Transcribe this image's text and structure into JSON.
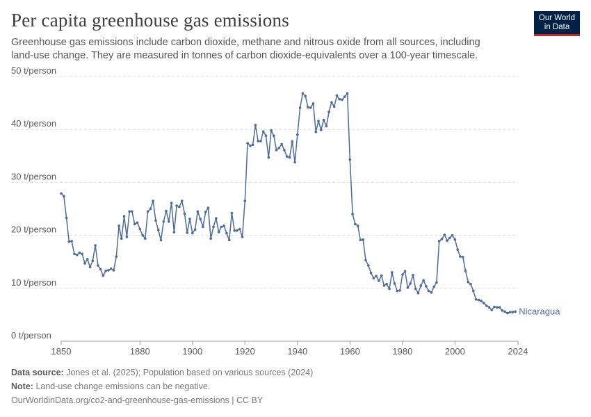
{
  "header": {
    "title": "Per capita greenhouse gas emissions",
    "subtitle": "Greenhouse gas emissions include carbon dioxide, methane and nitrous oxide from all sources, including land-use change. They are measured in tonnes of carbon dioxide-equivalents over a 100-year timescale.",
    "logo_line1": "Our World",
    "logo_line2": "in Data"
  },
  "footer": {
    "source_label": "Data source:",
    "source_text": "Jones et al. (2025); Population based on various sources (2024)",
    "note_label": "Note:",
    "note_text": "Land-use change emissions can be negative.",
    "url": "OurWorldinData.org/co2-and-greenhouse-gas-emissions | CC BY"
  },
  "colors": {
    "series": "#4c6a9c",
    "grid": "#dddddd",
    "text": "#5b5b5b"
  },
  "chart_data": {
    "type": "line",
    "ylim": [
      0,
      50
    ],
    "xlim": [
      1850,
      2023
    ],
    "y_ticks": [
      0,
      10,
      20,
      30,
      40,
      50
    ],
    "y_tick_labels": [
      "0 t/person",
      "10 t/person",
      "20 t/person",
      "30 t/person",
      "40 t/person",
      "50 t/person"
    ],
    "x_ticks": [
      1850,
      1880,
      1900,
      1920,
      1940,
      1960,
      1980,
      2000,
      2024
    ],
    "grid": "horizontal-dashed",
    "series": [
      {
        "name": "Nicaragua",
        "x": [
          1850,
          1851,
          1852,
          1853,
          1854,
          1855,
          1856,
          1857,
          1858,
          1859,
          1860,
          1861,
          1862,
          1863,
          1864,
          1865,
          1866,
          1867,
          1868,
          1869,
          1870,
          1871,
          1872,
          1873,
          1874,
          1875,
          1876,
          1877,
          1878,
          1879,
          1880,
          1881,
          1882,
          1883,
          1884,
          1885,
          1886,
          1887,
          1888,
          1889,
          1890,
          1891,
          1892,
          1893,
          1894,
          1895,
          1896,
          1897,
          1898,
          1899,
          1900,
          1901,
          1902,
          1903,
          1904,
          1905,
          1906,
          1907,
          1908,
          1909,
          1910,
          1911,
          1912,
          1913,
          1914,
          1915,
          1916,
          1917,
          1918,
          1919,
          1920,
          1921,
          1922,
          1923,
          1924,
          1925,
          1926,
          1927,
          1928,
          1929,
          1930,
          1931,
          1932,
          1933,
          1934,
          1935,
          1936,
          1937,
          1938,
          1939,
          1940,
          1941,
          1942,
          1943,
          1944,
          1945,
          1946,
          1947,
          1948,
          1949,
          1950,
          1951,
          1952,
          1953,
          1954,
          1955,
          1956,
          1957,
          1958,
          1959,
          1960,
          1961,
          1962,
          1963,
          1964,
          1965,
          1966,
          1967,
          1968,
          1969,
          1970,
          1971,
          1972,
          1973,
          1974,
          1975,
          1976,
          1977,
          1978,
          1979,
          1980,
          1981,
          1982,
          1983,
          1984,
          1985,
          1986,
          1987,
          1988,
          1989,
          1990,
          1991,
          1992,
          1993,
          1994,
          1995,
          1996,
          1997,
          1998,
          1999,
          2000,
          2001,
          2002,
          2003,
          2004,
          2005,
          2006,
          2007,
          2008,
          2009,
          2010,
          2011,
          2012,
          2013,
          2014,
          2015,
          2016,
          2017,
          2018,
          2019,
          2020,
          2021,
          2022,
          2023
        ],
        "values": [
          27.9,
          27.4,
          23.3,
          18.8,
          18.9,
          16.5,
          16.3,
          16.7,
          16.5,
          14.7,
          15.5,
          14.0,
          15.2,
          18.1,
          14.3,
          13.6,
          12.4,
          13.3,
          13.4,
          13.7,
          13.4,
          16.0,
          21.8,
          19.4,
          23.6,
          19.7,
          24.5,
          24.5,
          22.1,
          22.4,
          21.2,
          20.0,
          19.4,
          24.5,
          25.0,
          26.5,
          22.8,
          21.0,
          19.1,
          22.6,
          24.6,
          22.6,
          26.1,
          20.6,
          25.6,
          25.4,
          26.5,
          24.1,
          20.5,
          23.1,
          20.4,
          21.1,
          24.5,
          23.1,
          21.6,
          24.4,
          25.2,
          19.4,
          21.6,
          23.2,
          20.6,
          21.6,
          21.8,
          20.4,
          19.1,
          24.2,
          20.9,
          20.9,
          21.2,
          19.7,
          26.5,
          37.4,
          36.9,
          37.1,
          40.8,
          37.8,
          37.8,
          39.6,
          38.8,
          34.7,
          39.8,
          38.8,
          36.1,
          36.5,
          37.2,
          36.1,
          34.9,
          34.7,
          37.7,
          33.8,
          39.0,
          44.1,
          46.8,
          46.3,
          44.2,
          44.1,
          44.9,
          39.5,
          41.6,
          39.9,
          41.8,
          40.6,
          43.3,
          45.1,
          44.3,
          46.4,
          45.7,
          45.6,
          46.2,
          46.8,
          34.3,
          24.0,
          22.1,
          21.8,
          19.1,
          19.2,
          15.3,
          14.3,
          12.9,
          11.9,
          12.3,
          11.4,
          12.4,
          10.5,
          10.8,
          9.9,
          13.0,
          10.9,
          9.5,
          9.6,
          12.6,
          13.2,
          10.1,
          10.9,
          12.5,
          9.9,
          9.1,
          10.5,
          11.5,
          10.4,
          9.5,
          9.2,
          10.3,
          11.1,
          18.9,
          19.3,
          20.1,
          19.0,
          19.5,
          20.0,
          19.2,
          17.3,
          16.0,
          15.9,
          13.3,
          11.2,
          10.8,
          9.5,
          7.9,
          7.8,
          7.6,
          7.2,
          6.7,
          6.4,
          5.9,
          6.5,
          6.4,
          6.4,
          5.8,
          5.6,
          5.3,
          5.5,
          5.5,
          5.6
        ]
      }
    ]
  }
}
